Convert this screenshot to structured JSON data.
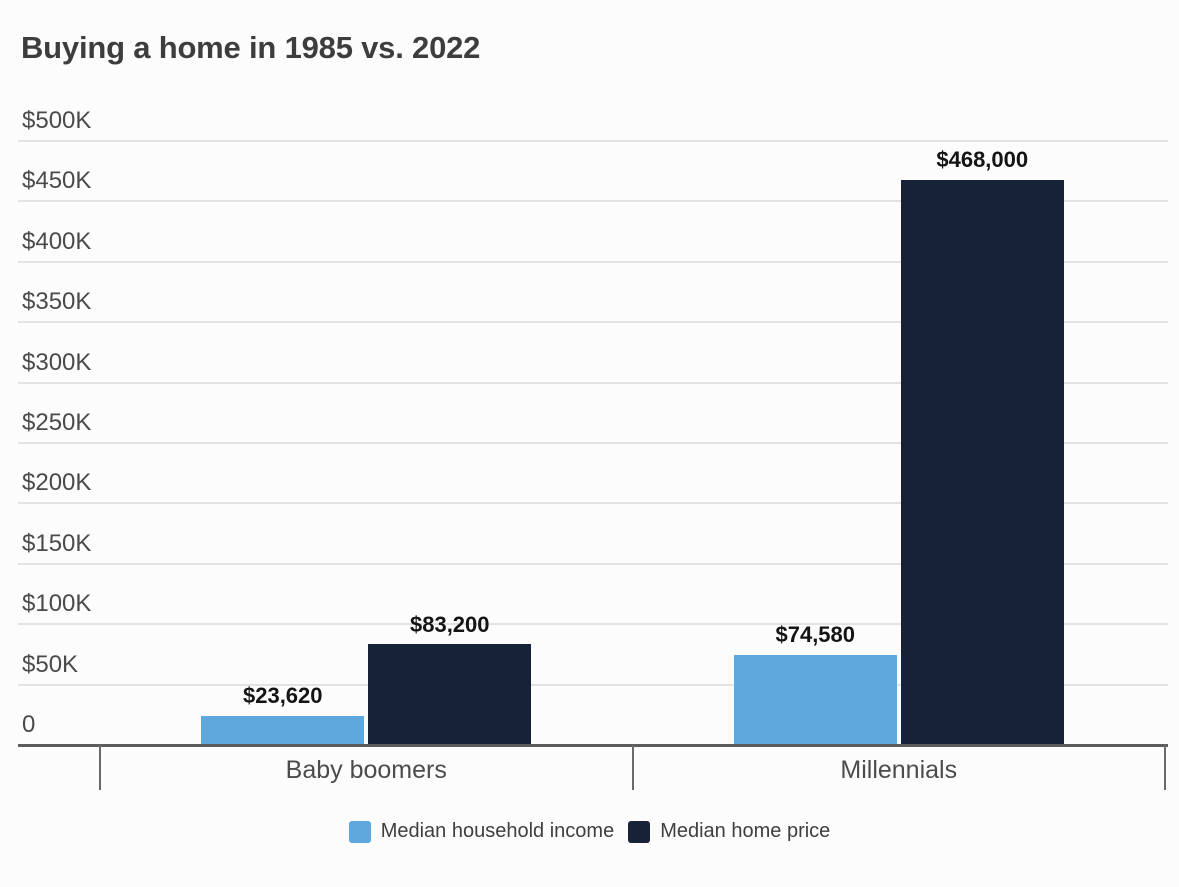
{
  "title": "Buying a home in 1985 vs. 2022",
  "colors": {
    "income": "#5FA8DD",
    "price": "#152238",
    "title_text": "#3d3d3d",
    "axis_text": "#4a4a4a",
    "value_text": "#141414",
    "gridline": "#e3e3e3",
    "axis_line": "#5c5c5c",
    "background": "#fcfcfc"
  },
  "chart_data": {
    "type": "bar",
    "title": "Buying a home in 1985 vs. 2022",
    "categories": [
      "Baby boomers",
      "Millennials"
    ],
    "series": [
      {
        "name": "Median household income",
        "key": "income",
        "color": "#5FA8DD",
        "values": [
          23620,
          74580
        ],
        "labels": [
          "$23,620",
          "$74,580"
        ]
      },
      {
        "name": "Median home price",
        "key": "price",
        "color": "#152238",
        "values": [
          83200,
          468000
        ],
        "labels": [
          "$83,200",
          "$468,000"
        ]
      }
    ],
    "xlabel": "",
    "ylabel": "",
    "ylim": [
      0,
      500000
    ],
    "ytick_step": 50000,
    "yticks": [
      {
        "value": 0,
        "label": "0"
      },
      {
        "value": 50000,
        "label": "$50K"
      },
      {
        "value": 100000,
        "label": "$100K"
      },
      {
        "value": 150000,
        "label": "$150K"
      },
      {
        "value": 200000,
        "label": "$200K"
      },
      {
        "value": 250000,
        "label": "$250K"
      },
      {
        "value": 300000,
        "label": "$300K"
      },
      {
        "value": 350000,
        "label": "$350K"
      },
      {
        "value": 400000,
        "label": "$400K"
      },
      {
        "value": 450000,
        "label": "$450K"
      },
      {
        "value": 500000,
        "label": "$500K"
      }
    ],
    "grid": "horizontal",
    "legend_position": "bottom"
  }
}
